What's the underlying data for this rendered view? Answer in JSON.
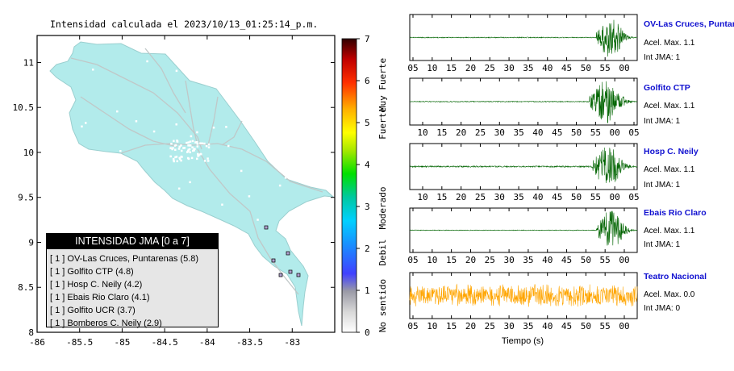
{
  "map": {
    "title": "Intensidad calculada el 2023/10/13_01:25:14_p.m.",
    "x_ticks": [
      "-86",
      "-85.5",
      "-85",
      "-84.5",
      "-84",
      "-83.5",
      "-83"
    ],
    "y_ticks": [
      "11",
      "10.5",
      "10",
      "9.5",
      "9",
      "8.5",
      "8"
    ],
    "xlim": [
      -86,
      -82.5
    ],
    "ylim": [
      8,
      11.3
    ],
    "land_color": "#b2ebeb",
    "legend": {
      "title": "INTENSIDAD JMA [0 a 7]",
      "rows": [
        {
          "label": "[ 1 ]  OV-Las Cruces, Puntarenas (5.8)"
        },
        {
          "label": "[ 1 ]  Golfito CTP (4.8)"
        },
        {
          "label": "[ 1 ]  Hosp C. Neily (4.2)"
        },
        {
          "label": "[ 1 ]  Ebais Rio Claro (4.1)"
        },
        {
          "label": "[ 1 ]  Golfito UCR (3.7)"
        },
        {
          "label": "[ 1 ]  Bomberos C. Neily (2.9)"
        }
      ]
    }
  },
  "colorbar": {
    "ticks": [
      "7",
      "6",
      "5",
      "4",
      "3",
      "2",
      "1",
      "0"
    ],
    "labels": [
      "Muy Fuerte",
      "Fuerte",
      "Moderado",
      "Debil",
      "No sentido"
    ]
  },
  "chart_data": {
    "type": "line",
    "xlabel": "Tiempo (s)",
    "panels": [
      {
        "name": "OV-Las Cruces, Puntar",
        "acel": "Acel. Max. 1.1",
        "int": "Int JMA: 1",
        "ticks": [
          "05",
          "10",
          "15",
          "20",
          "25",
          "30",
          "35",
          "40",
          "45",
          "50",
          "55",
          "00"
        ],
        "onset": 0.82,
        "noise": 0.02,
        "color": "#006400"
      },
      {
        "name": "Golfito CTP",
        "acel": "Acel. Max. 1.1",
        "int": "Int JMA: 1",
        "ticks": [
          "10",
          "15",
          "20",
          "25",
          "30",
          "35",
          "40",
          "45",
          "50",
          "55",
          "00",
          "05"
        ],
        "onset": 0.79,
        "noise": 0.02,
        "color": "#006400"
      },
      {
        "name": "Hosp C. Neily",
        "acel": "Acel. Max. 1.1",
        "int": "Int JMA: 1",
        "ticks": [
          "10",
          "15",
          "20",
          "25",
          "30",
          "35",
          "40",
          "45",
          "50",
          "55",
          "00",
          "05"
        ],
        "onset": 0.8,
        "noise": 0.03,
        "color": "#006400"
      },
      {
        "name": "Ebais Rio Claro",
        "acel": "Acel. Max. 1.1",
        "int": "Int JMA: 1",
        "ticks": [
          "05",
          "10",
          "15",
          "20",
          "25",
          "30",
          "35",
          "40",
          "45",
          "50",
          "55",
          "00"
        ],
        "onset": 0.82,
        "noise": 0.015,
        "color": "#006400"
      },
      {
        "name": "Teatro Nacional",
        "acel": "Acel. Max. 0.0",
        "int": "Int JMA: 0",
        "ticks": [
          "05",
          "10",
          "15",
          "20",
          "25",
          "30",
          "35",
          "40",
          "45",
          "50",
          "55",
          "00"
        ],
        "onset": -1,
        "noise": 0.55,
        "color": "#ffa500"
      }
    ]
  }
}
